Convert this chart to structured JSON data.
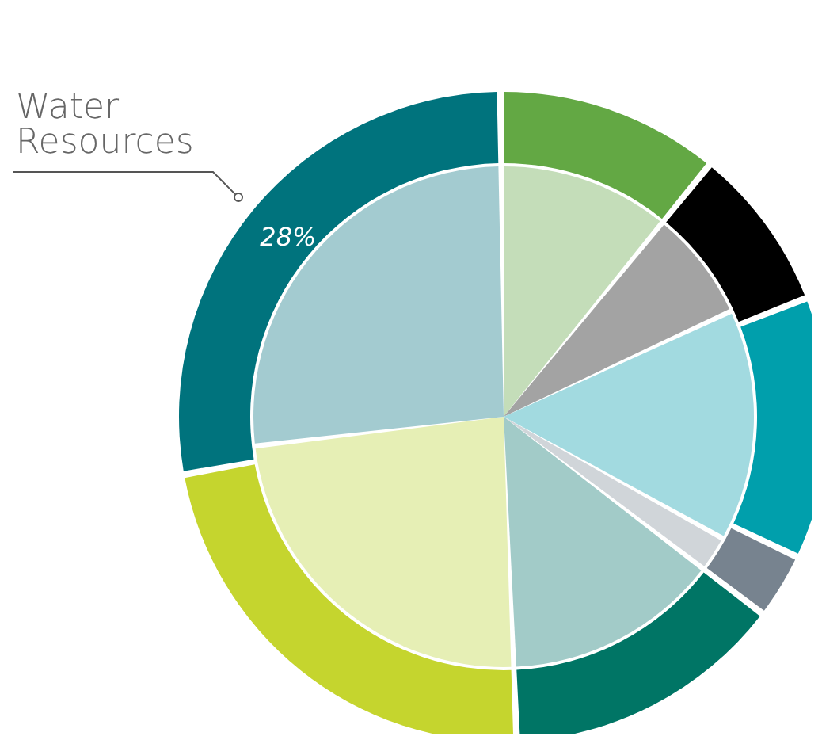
{
  "chart_data": {
    "type": "donut",
    "categories": [
      null,
      null,
      null,
      null,
      null,
      null,
      "Water Resources"
    ],
    "series": [
      {
        "colors": [
          "#c4ddb9",
          "#a3a3a3",
          "#a2dae0",
          "#d0d5d9",
          "#a2cbc8",
          "#e6efb5",
          "#a3cbd0"
        ],
        "values": [
          11,
          7,
          15,
          2,
          14,
          24,
          27
        ]
      },
      {
        "colors": [
          "#63a844",
          "#000000",
          "#009fac",
          "#77838f",
          "#007565",
          "#c5d52e",
          "#00737d"
        ],
        "values": [
          11,
          8,
          13,
          3,
          14,
          23,
          28
        ],
        "value_labels": [
          null,
          null,
          null,
          null,
          null,
          null,
          "28%"
        ]
      }
    ],
    "legend": false
  }
}
